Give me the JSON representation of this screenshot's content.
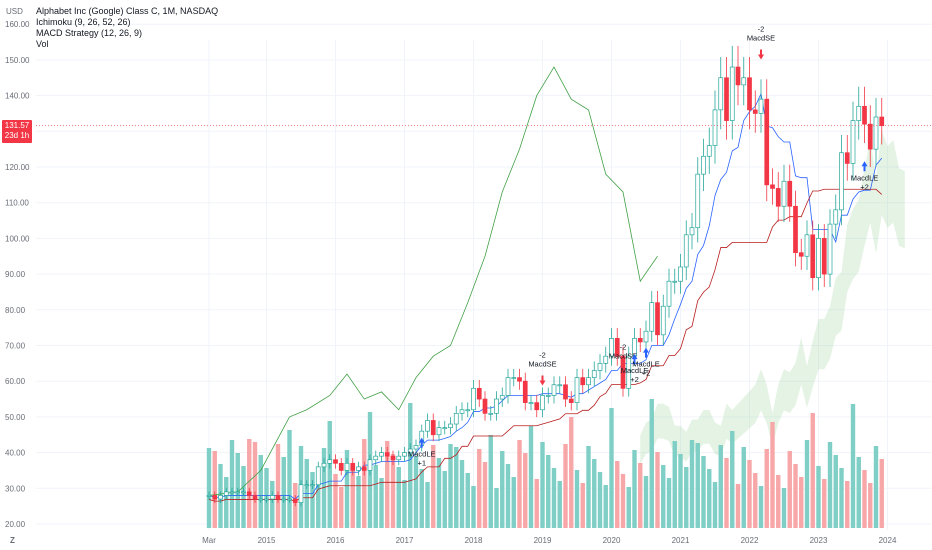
{
  "header": {
    "currency": "USD",
    "title": "Alphabet Inc (Google) Class C, 1M, NASDAQ",
    "indicators": [
      "Ichimoku (9, 26, 52, 26)",
      "MACD Strategy (12, 26, 9)",
      "Vol"
    ]
  },
  "price_tag": {
    "value": "131.57",
    "countdown": "23d 1h"
  },
  "footer": {
    "zoom_label": "Z"
  },
  "colors": {
    "up": "#26a69a",
    "down": "#f23645",
    "vol_up": "#7fcfc6",
    "vol_down": "#f7a7a8",
    "tenkan": "#2962ff",
    "kijun": "#b71c1c",
    "lagging": "#43a047",
    "cloud": "#a5d6a7"
  },
  "chart_data": {
    "type": "candlestick",
    "title": "Alphabet Inc (Google) Class C, 1M, NASDAQ",
    "yticks": [
      "20.00",
      "30.00",
      "40.00",
      "50.00",
      "60.00",
      "70.00",
      "80.00",
      "90.00",
      "100.00",
      "110.00",
      "120.00",
      "130.00",
      "140.00",
      "150.00",
      "160.00"
    ],
    "ylim": [
      20,
      160
    ],
    "xticks": [
      "Mar",
      "2015",
      "2016",
      "2017",
      "2018",
      "2019",
      "2020",
      "2021",
      "2022",
      "2023",
      "2024"
    ],
    "last_price": 131.57,
    "series": [
      {
        "name": "Price (monthly close)",
        "points": [
          [
            "2014-03",
            28
          ],
          [
            "2014-04",
            27
          ],
          [
            "2014-05",
            28
          ],
          [
            "2014-06",
            29
          ],
          [
            "2014-07",
            29
          ],
          [
            "2014-08",
            29
          ],
          [
            "2014-09",
            29
          ],
          [
            "2014-10",
            28
          ],
          [
            "2014-11",
            27
          ],
          [
            "2014-12",
            27
          ],
          [
            "2015-01",
            27
          ],
          [
            "2015-02",
            28
          ],
          [
            "2015-03",
            27
          ],
          [
            "2015-04",
            27
          ],
          [
            "2015-05",
            27
          ],
          [
            "2015-06",
            26
          ],
          [
            "2015-07",
            31
          ],
          [
            "2015-08",
            31
          ],
          [
            "2015-09",
            31
          ],
          [
            "2015-10",
            36
          ],
          [
            "2015-11",
            37
          ],
          [
            "2015-12",
            38
          ],
          [
            "2016-01",
            37
          ],
          [
            "2016-02",
            35
          ],
          [
            "2016-03",
            37
          ],
          [
            "2016-04",
            35
          ],
          [
            "2016-05",
            36
          ],
          [
            "2016-06",
            35
          ],
          [
            "2016-07",
            38
          ],
          [
            "2016-08",
            39
          ],
          [
            "2016-09",
            40
          ],
          [
            "2016-10",
            39
          ],
          [
            "2016-11",
            38
          ],
          [
            "2016-12",
            39
          ],
          [
            "2017-01",
            40
          ],
          [
            "2017-02",
            41
          ],
          [
            "2017-03",
            42
          ],
          [
            "2017-04",
            46
          ],
          [
            "2017-05",
            49
          ],
          [
            "2017-06",
            45
          ],
          [
            "2017-07",
            47
          ],
          [
            "2017-08",
            47
          ],
          [
            "2017-09",
            48
          ],
          [
            "2017-10",
            51
          ],
          [
            "2017-11",
            52
          ],
          [
            "2017-12",
            52
          ],
          [
            "2018-01",
            58
          ],
          [
            "2018-02",
            55
          ],
          [
            "2018-03",
            51
          ],
          [
            "2018-04",
            51
          ],
          [
            "2018-05",
            55
          ],
          [
            "2018-06",
            56
          ],
          [
            "2018-07",
            61
          ],
          [
            "2018-08",
            61
          ],
          [
            "2018-09",
            60
          ],
          [
            "2018-10",
            54
          ],
          [
            "2018-11",
            54
          ],
          [
            "2018-12",
            52
          ],
          [
            "2019-01",
            56
          ],
          [
            "2019-02",
            56
          ],
          [
            "2019-03",
            59
          ],
          [
            "2019-04",
            59
          ],
          [
            "2019-05",
            55
          ],
          [
            "2019-06",
            54
          ],
          [
            "2019-07",
            61
          ],
          [
            "2019-08",
            59
          ],
          [
            "2019-09",
            61
          ],
          [
            "2019-10",
            63
          ],
          [
            "2019-11",
            65
          ],
          [
            "2019-12",
            67
          ],
          [
            "2020-01",
            72
          ],
          [
            "2020-02",
            67
          ],
          [
            "2020-03",
            58
          ],
          [
            "2020-04",
            67
          ],
          [
            "2020-05",
            72
          ],
          [
            "2020-06",
            71
          ],
          [
            "2020-07",
            74
          ],
          [
            "2020-08",
            82
          ],
          [
            "2020-09",
            73
          ],
          [
            "2020-10",
            81
          ],
          [
            "2020-11",
            88
          ],
          [
            "2020-12",
            88
          ],
          [
            "2021-01",
            92
          ],
          [
            "2021-02",
            101
          ],
          [
            "2021-03",
            103
          ],
          [
            "2021-04",
            118
          ],
          [
            "2021-05",
            123
          ],
          [
            "2021-06",
            126
          ],
          [
            "2021-07",
            136
          ],
          [
            "2021-08",
            145
          ],
          [
            "2021-09",
            133
          ],
          [
            "2021-10",
            148
          ],
          [
            "2021-11",
            143
          ],
          [
            "2021-12",
            145
          ],
          [
            "2022-01",
            136
          ],
          [
            "2022-02",
            135
          ],
          [
            "2022-03",
            139
          ],
          [
            "2022-04",
            115
          ],
          [
            "2022-05",
            114
          ],
          [
            "2022-06",
            109
          ],
          [
            "2022-07",
            116
          ],
          [
            "2022-08",
            109
          ],
          [
            "2022-09",
            96
          ],
          [
            "2022-10",
            95
          ],
          [
            "2022-11",
            101
          ],
          [
            "2022-12",
            89
          ],
          [
            "2023-01",
            100
          ],
          [
            "2023-02",
            90
          ],
          [
            "2023-03",
            104
          ],
          [
            "2023-04",
            108
          ],
          [
            "2023-05",
            124
          ],
          [
            "2023-06",
            121
          ],
          [
            "2023-07",
            133
          ],
          [
            "2023-08",
            137
          ],
          [
            "2023-09",
            132
          ],
          [
            "2023-10",
            125
          ],
          [
            "2023-11",
            134
          ],
          [
            "2023-12",
            131.57
          ]
        ]
      },
      {
        "name": "Ichimoku Lagging Span",
        "points": [
          [
            "2014-03",
            28
          ],
          [
            "2014-08",
            29
          ],
          [
            "2014-12",
            35
          ],
          [
            "2015-05",
            50
          ],
          [
            "2015-08",
            52
          ],
          [
            "2015-12",
            56
          ],
          [
            "2016-03",
            62
          ],
          [
            "2016-06",
            55
          ],
          [
            "2016-09",
            57
          ],
          [
            "2016-12",
            52
          ],
          [
            "2017-03",
            61
          ],
          [
            "2017-06",
            67
          ],
          [
            "2017-09",
            70
          ],
          [
            "2017-12",
            82
          ],
          [
            "2018-03",
            95
          ],
          [
            "2018-06",
            113
          ],
          [
            "2018-09",
            125
          ],
          [
            "2018-12",
            140
          ],
          [
            "2019-03",
            148
          ],
          [
            "2019-06",
            139
          ],
          [
            "2019-09",
            136
          ],
          [
            "2019-12",
            118
          ],
          [
            "2020-03",
            113
          ],
          [
            "2020-06",
            88
          ],
          [
            "2020-09",
            95
          ]
        ]
      }
    ],
    "markers": [
      {
        "label": "MacdLE",
        "qty": "+1",
        "date": "2017-04",
        "side": "buy"
      },
      {
        "label": "MacdSE",
        "qty": "-2",
        "date": "2019-01",
        "side": "sell"
      },
      {
        "label": "MacdSE",
        "qty": "-2",
        "date": "2020-03",
        "side": "sell"
      },
      {
        "label": "MacdLE",
        "qty": "+2",
        "date": "2020-05",
        "side": "buy"
      },
      {
        "label": "MacdLE",
        "qty": "+2",
        "date": "2020-07",
        "side": "buy"
      },
      {
        "label": "MacdSE",
        "qty": "-2",
        "date": "2022-03",
        "side": "sell"
      },
      {
        "label": "MacdLE",
        "qty": "+2",
        "date": "2023-09",
        "side": "buy"
      }
    ],
    "legend": [
      "Ichimoku (9, 26, 52, 26)",
      "MACD Strategy (12, 26, 9)",
      "Vol"
    ],
    "grid": true
  }
}
